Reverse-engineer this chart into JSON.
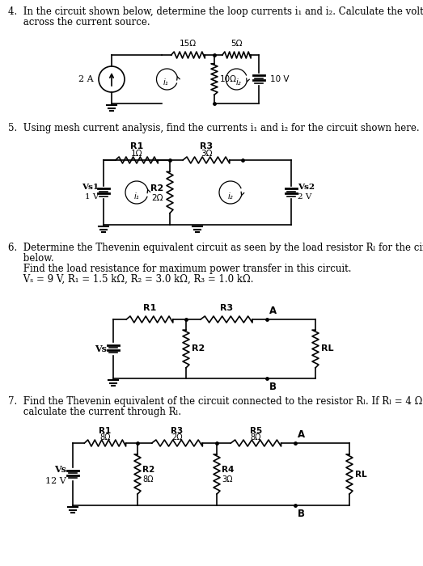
{
  "bg_color": "#ffffff",
  "q4_line1": "4.  In the circuit shown below, determine the loop currents i₁ and i₂. Calculate the voltage drop",
  "q4_line2": "     across the current source.",
  "q5_line1": "5.  Using mesh current analysis, find the currents i₁ and i₂ for the circuit shown here.",
  "q6_line1": "6.  Determine the Thevenin equivalent circuit as seen by the load resistor Rₗ for the circuit given",
  "q6_line2": "     below.",
  "q6_line3": "     Find the load resistance for maximum power transfer in this circuit.",
  "q6_line4": "     Vₛ = 9 V, R₁ = 1.5 kΩ, R₂ = 3.0 kΩ, R₃ = 1.0 kΩ.",
  "q7_line1": "7.  Find the Thevenin equivalent of the circuit connected to the resistor Rₗ. If Rₗ = 4 Ω,",
  "q7_line2": "     calculate the current through Rₗ."
}
